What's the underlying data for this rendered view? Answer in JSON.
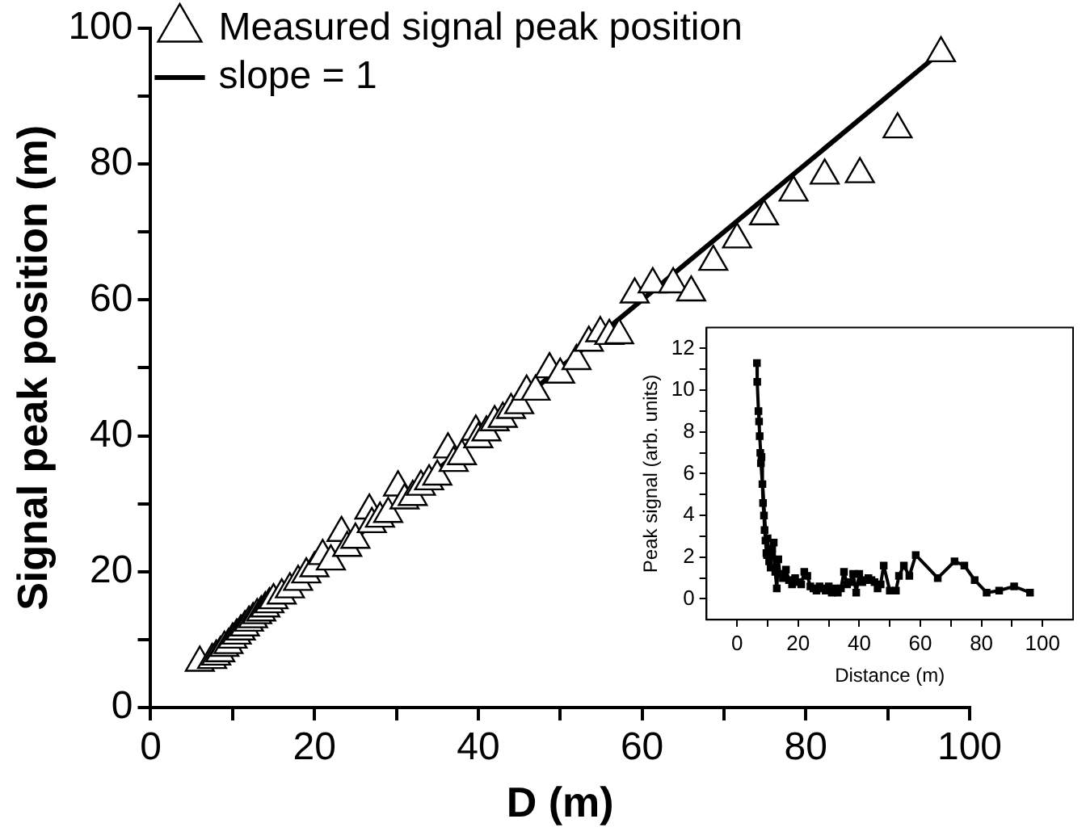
{
  "chart_data": [
    {
      "type": "scatter",
      "xlabel": "D (m)",
      "ylabel": "Signal peak position (m)",
      "legend": "top left",
      "xlim": [
        0,
        100
      ],
      "ylim": [
        0,
        100
      ],
      "xticks": [
        0,
        {
          "value": 10,
          "label": null
        },
        20,
        {
          "value": 30,
          "label": null
        },
        40,
        {
          "value": 50,
          "label": null
        },
        60,
        {
          "value": 70,
          "label": null
        },
        80,
        {
          "value": 90,
          "label": null
        },
        100
      ],
      "yticks": [
        0,
        {
          "value": 10,
          "label": null
        },
        20,
        {
          "value": 30,
          "label": null
        },
        40,
        {
          "value": 50,
          "label": null
        },
        60,
        {
          "value": 70,
          "label": null
        },
        80,
        {
          "value": 90,
          "label": null
        },
        100
      ],
      "series": [
        {
          "name": "Measured signal peak position",
          "type": "scatter",
          "marker": "triangle",
          "color": "#000000",
          "x": [
            6,
            7.5,
            8,
            8.5,
            9,
            9.5,
            10,
            10.5,
            11,
            11.5,
            12,
            12.5,
            13,
            13.5,
            14,
            14.5,
            15,
            16,
            17,
            18,
            19,
            20,
            21,
            22,
            23.3,
            24,
            25,
            26.7,
            27,
            28,
            29,
            30.2,
            31,
            32,
            33,
            34,
            35,
            36.3,
            37,
            38,
            39.7,
            40,
            41,
            42,
            43,
            44,
            45,
            45.9,
            47,
            48.7,
            50,
            52,
            53.5,
            54.9,
            56,
            57.2,
            59.1,
            61.3,
            63.8,
            66,
            68.7,
            71.6,
            74.9,
            78.5,
            82.3,
            86.6,
            91.2,
            96.5
          ],
          "values": [
            6.6,
            7,
            7.5,
            8,
            8.8,
            9.2,
            10,
            10.6,
            11.2,
            11.8,
            12.5,
            13,
            13.6,
            14,
            14.6,
            15.2,
            15.8,
            16.5,
            17.4,
            18.5,
            19.6,
            20.5,
            22.3,
            21.5,
            25.7,
            23.5,
            24.7,
            29,
            27,
            27.8,
            28.5,
            32.4,
            30.5,
            31,
            32.5,
            33.3,
            34,
            38,
            36,
            37,
            40.6,
            39.5,
            40.5,
            42,
            42.5,
            43.8,
            44.5,
            46.5,
            46.5,
            49.8,
            49,
            51,
            53.7,
            55.1,
            54.7,
            54.8,
            60.8,
            62.3,
            62.3,
            61.1,
            65.6,
            68.9,
            72.3,
            75.8,
            78.3,
            78.5,
            85.1,
            96.3
          ]
        },
        {
          "name": "slope = 1",
          "type": "line",
          "marker": "none",
          "line_style": "solid",
          "color": "#000000",
          "x": [
            8,
            96
          ],
          "values": [
            8,
            96
          ]
        }
      ]
    },
    {
      "type": "line",
      "marker": "square",
      "line_style": "solid",
      "xlabel": "Distance (m)",
      "ylabel": "Peak signal (arb. units)",
      "xlim": [
        -10,
        110
      ],
      "ylim": [
        -1,
        13
      ],
      "xticks": [
        0,
        {
          "value": 10,
          "label": null
        },
        20,
        {
          "value": 30,
          "label": null
        },
        40,
        {
          "value": 50,
          "label": null
        },
        60,
        {
          "value": 70,
          "label": null
        },
        80,
        {
          "value": 90,
          "label": null
        },
        100
      ],
      "yticks": [
        0,
        {
          "value": 1,
          "label": null
        },
        2,
        {
          "value": 3,
          "label": null
        },
        4,
        {
          "value": 5,
          "label": null
        },
        6,
        {
          "value": 7,
          "label": null
        },
        8,
        {
          "value": 9,
          "label": null
        },
        10,
        {
          "value": 11,
          "label": null
        },
        12
      ],
      "series": [
        {
          "color": "#000000",
          "x": [
            6.5,
            6.6,
            7,
            7.2,
            7.4,
            9.8,
            7.6,
            7.8,
            8,
            8.3,
            8.5,
            8.8,
            9,
            9.3,
            9.6,
            10,
            10.5,
            11,
            11.5,
            12,
            12.5,
            13,
            13.5,
            14,
            15,
            16,
            17,
            18,
            19,
            20,
            21,
            22,
            23,
            24,
            25,
            26,
            27,
            28,
            29,
            30,
            31,
            32,
            33,
            34,
            35,
            36,
            37,
            38,
            39,
            40,
            41,
            42,
            43,
            44,
            45,
            46,
            47,
            48,
            50,
            52,
            53,
            54.6,
            56.4,
            58.5,
            65.7,
            71.2,
            74.4,
            77.8,
            81.7,
            85.8,
            90.7,
            95.9
          ],
          "values": [
            11.3,
            10.4,
            9,
            8.5,
            7.8,
            2.1,
            7,
            6.5,
            6.8,
            5.5,
            4.6,
            4,
            3.3,
            2.8,
            2.2,
            2.9,
            1.8,
            1.5,
            2.4,
            2.7,
            1.3,
            0.5,
            1.9,
            1.2,
            1,
            1.4,
            0.9,
            0.7,
            1,
            0.8,
            0.7,
            1.3,
            1.1,
            0.6,
            0.5,
            0.4,
            0.6,
            0.5,
            0.4,
            0.6,
            0.3,
            0.5,
            0.3,
            0.5,
            1.3,
            0.7,
            0.8,
            1.2,
            0.3,
            1.2,
            0.8,
            0.9,
            1,
            0.9,
            0.8,
            0.5,
            0.7,
            1.6,
            0.4,
            0.4,
            1.1,
            1.6,
            1.1,
            2.1,
            1,
            1.8,
            1.6,
            0.9,
            0.3,
            0.4,
            0.6,
            0.3
          ]
        }
      ]
    }
  ]
}
